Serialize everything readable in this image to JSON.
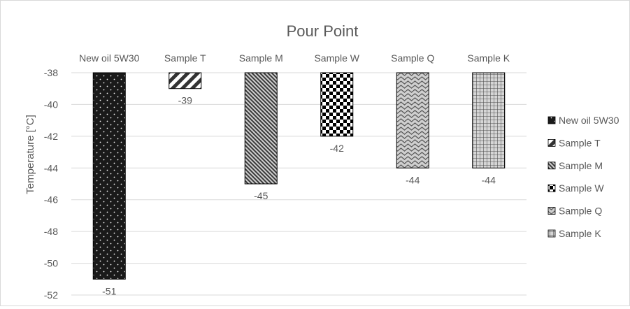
{
  "chart_data": {
    "type": "bar",
    "title": "Pour Point",
    "xlabel": "",
    "ylabel": "Temperature [°C]",
    "ylim": [
      -52,
      -38
    ],
    "yticks": [
      -38,
      -40,
      -42,
      -44,
      -46,
      -48,
      -50,
      -52
    ],
    "grid": true,
    "legend_position": "right",
    "categories": [
      "New oil 5W30",
      "Sample T",
      "Sample M",
      "Sample W",
      "Sample Q",
      "Sample K"
    ],
    "values": [
      -51,
      -39,
      -45,
      -42,
      -44,
      -44
    ],
    "series": [
      {
        "name": "New oil 5W30",
        "value": -51,
        "pattern": "dots",
        "color": "#1a1a1a"
      },
      {
        "name": "Sample T",
        "value": -39,
        "pattern": "wide-diagonal",
        "color": "#404040"
      },
      {
        "name": "Sample M",
        "value": -45,
        "pattern": "narrow-diagonal",
        "color": "#404040"
      },
      {
        "name": "Sample W",
        "value": -42,
        "pattern": "checker",
        "color": "#000000"
      },
      {
        "name": "Sample Q",
        "value": -44,
        "pattern": "wave",
        "color": "#595959"
      },
      {
        "name": "Sample K",
        "value": -44,
        "pattern": "grid",
        "color": "#404040"
      }
    ]
  }
}
